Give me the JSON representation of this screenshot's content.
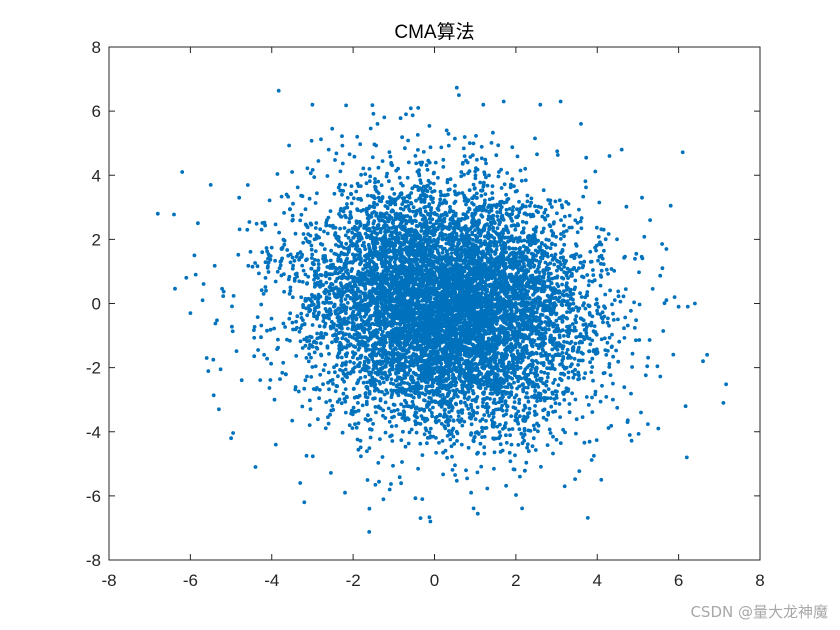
{
  "chart_data": {
    "type": "scatter",
    "title": "CMA算法",
    "xlabel": "",
    "ylabel": "",
    "xlim": [
      -8,
      8
    ],
    "ylim": [
      -8,
      8
    ],
    "xticks": [
      "-8",
      "-6",
      "-4",
      "-2",
      "0",
      "2",
      "4",
      "6",
      "8"
    ],
    "yticks": [
      "8",
      "6",
      "4",
      "2",
      "0",
      "-2",
      "-4",
      "-6",
      "-8"
    ],
    "grid": false,
    "marker_color": "#0072BD",
    "points": [
      [
        -6.8,
        2.8
      ],
      [
        -6.2,
        4.1
      ],
      [
        -6.1,
        0.8
      ],
      [
        -5.9,
        1.5
      ],
      [
        -5.6,
        -1.7
      ],
      [
        -5.5,
        3.7
      ],
      [
        -5.3,
        -3.3
      ],
      [
        -5.0,
        -4.2
      ],
      [
        -4.8,
        3.3
      ],
      [
        -4.6,
        2.3
      ],
      [
        -4.4,
        -5.1
      ],
      [
        -4.2,
        0.3
      ],
      [
        -3.9,
        -4.4
      ],
      [
        -3.5,
        4.1
      ],
      [
        -3.3,
        -5.6
      ],
      [
        -3.2,
        -6.2
      ],
      [
        -3.0,
        6.2
      ],
      [
        -2.6,
        4.8
      ],
      [
        -2.2,
        -5.9
      ],
      [
        -1.9,
        5.2
      ],
      [
        -1.6,
        -6.4
      ],
      [
        -1.4,
        5.6
      ],
      [
        -1.1,
        -5.8
      ],
      [
        -0.7,
        5.9
      ],
      [
        -0.4,
        6.1
      ],
      [
        -0.3,
        -6.1
      ],
      [
        -0.1,
        -6.8
      ],
      [
        0.3,
        5.4
      ],
      [
        0.6,
        6.5
      ],
      [
        0.9,
        -5.9
      ],
      [
        1.2,
        6.2
      ],
      [
        1.7,
        6.3
      ],
      [
        2.1,
        -5.4
      ],
      [
        2.6,
        6.2
      ],
      [
        3.1,
        6.3
      ],
      [
        3.2,
        -5.7
      ],
      [
        3.6,
        5.6
      ],
      [
        4.1,
        -5.5
      ],
      [
        4.3,
        4.6
      ],
      [
        4.6,
        4.8
      ],
      [
        4.8,
        -4.1
      ],
      [
        5.1,
        3.3
      ],
      [
        5.3,
        2.6
      ],
      [
        5.5,
        -3.9
      ],
      [
        5.7,
        1.7
      ],
      [
        6.0,
        -0.1
      ],
      [
        6.2,
        -4.8
      ],
      [
        6.4,
        0.0
      ],
      [
        6.6,
        -1.8
      ],
      [
        6.7,
        -1.6
      ],
      [
        7.1,
        -3.1
      ],
      [
        5.9,
        0.2
      ],
      [
        5.6,
        1.1
      ],
      [
        -5.7,
        0.1
      ],
      [
        -6.0,
        -0.3
      ]
    ],
    "cloud": {
      "count": 9000,
      "center_x": 0.3,
      "center_y": -0.1,
      "spread_x": 2.35,
      "spread_y": 2.55,
      "correlation": -0.12,
      "seed": 20240611
    }
  },
  "watermark": "CSDN @量大龙神魔"
}
